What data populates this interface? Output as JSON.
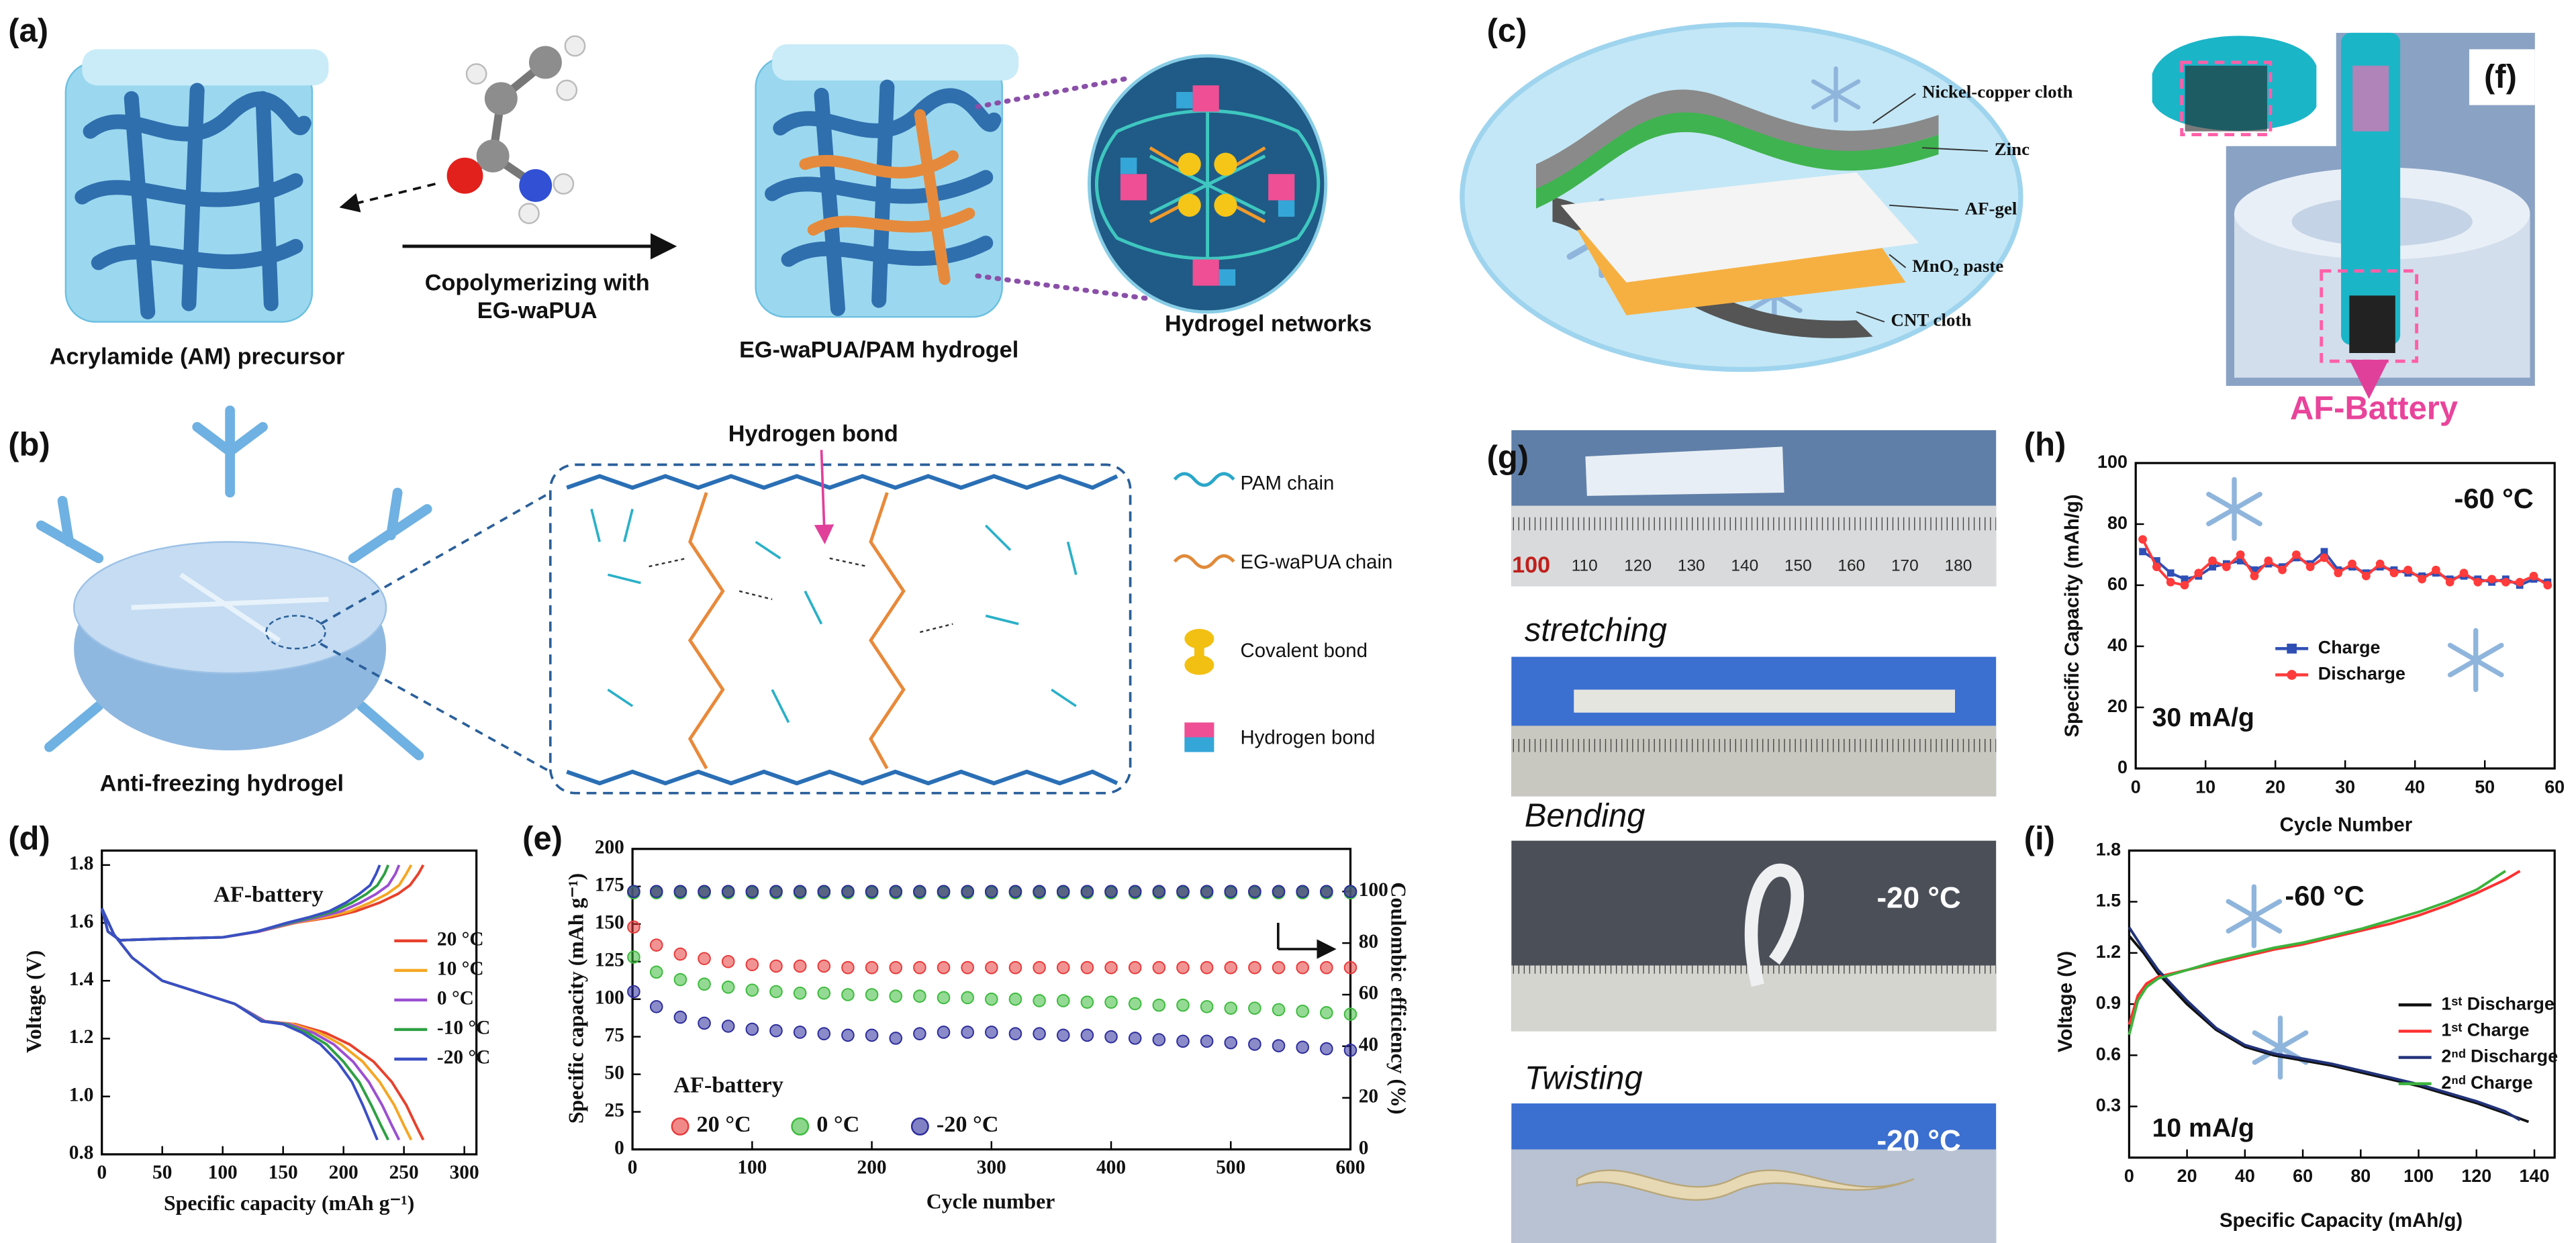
{
  "panels": {
    "a": {
      "label": "(a)",
      "precursor": "Acrylamide (AM) precursor",
      "arrow_text": [
        "Copolymerizing with",
        "EG-waPUA"
      ],
      "hydrogel": "EG-waPUA/PAM hydrogel",
      "networks": "Hydrogel networks"
    },
    "b": {
      "label": "(b)",
      "hydrogel": "Anti-freezing hydrogel",
      "hbond": "Hydrogen bond",
      "legend": [
        "PAM chain",
        "EG-waPUA chain",
        "Covalent bond",
        "Hydrogen bond"
      ]
    },
    "c": {
      "label": "(c)",
      "layers": [
        "Nickel-copper cloth",
        "Zinc",
        "AF-gel",
        "MnO₂ paste",
        "CNT cloth"
      ]
    },
    "f": {
      "label": "(f)",
      "battery": "AF-Battery"
    },
    "g": {
      "label": "(g)",
      "captions": [
        "stretching",
        "Bending",
        "Twisting"
      ],
      "temps": [
        "-20 °C",
        "-20 °C"
      ],
      "ruler": [
        "100",
        "110",
        "120",
        "130",
        "140",
        "150",
        "160",
        "170",
        "180"
      ]
    }
  },
  "chart_data": [
    {
      "type": "line",
      "label": "(d)",
      "xlabel": "Specific capacity (mAh g⁻¹)",
      "ylabel": "Voltage (V)",
      "annotations": [
        "AF-battery"
      ],
      "xlim": [
        0,
        310
      ],
      "ylim": [
        0.8,
        1.85
      ],
      "xticks": [
        0,
        50,
        100,
        150,
        200,
        250,
        300
      ],
      "yticks": [
        0.8,
        {
          "value": 1,
          "label": "1.0"
        },
        1.2,
        1.4,
        1.6,
        1.8
      ],
      "series": [
        {
          "name": "20 °C",
          "color": "#e8412c",
          "charge": {
            "x": [
              0,
              5,
              15,
              50,
              100,
              130,
              160,
              190,
              210,
              230,
              245,
              255,
              262,
              266
            ],
            "values": [
              1.65,
              1.57,
              1.54,
              1.545,
              1.55,
              1.57,
              1.6,
              1.62,
              1.64,
              1.67,
              1.7,
              1.73,
              1.77,
              1.8
            ]
          },
          "discharge": {
            "x": [
              0,
              10,
              25,
              50,
              80,
              110,
              135,
              160,
              185,
              205,
              225,
              240,
              252,
              260,
              266
            ],
            "values": [
              1.65,
              1.56,
              1.48,
              1.4,
              1.36,
              1.32,
              1.26,
              1.25,
              1.22,
              1.18,
              1.12,
              1.05,
              0.97,
              0.9,
              0.85
            ]
          }
        },
        {
          "name": "10 °C",
          "color": "#f5a623",
          "charge": {
            "x": [
              0,
              5,
              15,
              50,
              100,
              130,
              160,
              185,
              205,
              222,
              236,
              246,
              252,
              256
            ],
            "values": [
              1.65,
              1.57,
              1.54,
              1.545,
              1.55,
              1.57,
              1.6,
              1.62,
              1.64,
              1.67,
              1.7,
              1.73,
              1.77,
              1.8
            ]
          },
          "discharge": {
            "x": [
              0,
              10,
              25,
              50,
              80,
              110,
              135,
              158,
              180,
              198,
              216,
              230,
              242,
              250,
              256
            ],
            "values": [
              1.65,
              1.56,
              1.48,
              1.4,
              1.36,
              1.32,
              1.26,
              1.25,
              1.22,
              1.18,
              1.12,
              1.05,
              0.97,
              0.9,
              0.85
            ]
          }
        },
        {
          "name": "0 °C",
          "color": "#9b4fd1",
          "charge": {
            "x": [
              0,
              5,
              15,
              50,
              100,
              130,
              158,
              180,
              198,
              214,
              227,
              237,
              243,
              246
            ],
            "values": [
              1.65,
              1.57,
              1.54,
              1.545,
              1.55,
              1.57,
              1.6,
              1.62,
              1.64,
              1.67,
              1.7,
              1.73,
              1.77,
              1.8
            ]
          },
          "discharge": {
            "x": [
              0,
              10,
              25,
              50,
              80,
              110,
              135,
              155,
              175,
              192,
              208,
              221,
              232,
              240,
              246
            ],
            "values": [
              1.65,
              1.56,
              1.48,
              1.4,
              1.36,
              1.32,
              1.26,
              1.25,
              1.22,
              1.18,
              1.12,
              1.05,
              0.97,
              0.9,
              0.85
            ]
          }
        },
        {
          "name": "-10 °C",
          "color": "#2ea043",
          "charge": {
            "x": [
              0,
              5,
              15,
              50,
              100,
              128,
              155,
              175,
              192,
              207,
              219,
              228,
              234,
              237
            ],
            "values": [
              1.65,
              1.57,
              1.54,
              1.545,
              1.55,
              1.57,
              1.6,
              1.62,
              1.64,
              1.67,
              1.7,
              1.73,
              1.77,
              1.8
            ]
          },
          "discharge": {
            "x": [
              0,
              10,
              25,
              50,
              80,
              110,
              133,
              152,
              170,
              186,
              200,
              213,
              223,
              231,
              237
            ],
            "values": [
              1.65,
              1.56,
              1.48,
              1.4,
              1.36,
              1.32,
              1.26,
              1.25,
              1.22,
              1.18,
              1.12,
              1.05,
              0.97,
              0.9,
              0.85
            ]
          }
        },
        {
          "name": "-20 °C",
          "color": "#3a4fc4",
          "charge": {
            "x": [
              0,
              5,
              15,
              50,
              100,
              128,
              153,
              172,
              188,
              202,
              213,
              222,
              227,
              230
            ],
            "values": [
              1.65,
              1.57,
              1.54,
              1.545,
              1.55,
              1.57,
              1.6,
              1.62,
              1.64,
              1.67,
              1.7,
              1.73,
              1.77,
              1.8
            ]
          },
          "discharge": {
            "x": [
              0,
              10,
              25,
              50,
              80,
              110,
              132,
              150,
              166,
              181,
              195,
              207,
              216,
              223,
              228
            ],
            "values": [
              1.65,
              1.56,
              1.48,
              1.4,
              1.36,
              1.32,
              1.26,
              1.25,
              1.22,
              1.18,
              1.12,
              1.05,
              0.97,
              0.9,
              0.85
            ]
          }
        }
      ]
    },
    {
      "type": "scatter",
      "label": "(e)",
      "xlabel": "Cycle number",
      "ylabel": "Specific capacity (mAh g⁻¹)",
      "y2label": "Coulombic efficiency (%)",
      "annotations": [
        "AF-battery"
      ],
      "xlim": [
        0,
        600
      ],
      "ylim": [
        0,
        200
      ],
      "y2lim": [
        0,
        116.5
      ],
      "xticks": [
        0,
        100,
        200,
        300,
        400,
        500,
        600
      ],
      "yticks": [
        0,
        25,
        50,
        75,
        100,
        125,
        150,
        175,
        200
      ],
      "y2ticks": [
        0,
        20,
        40,
        60,
        80,
        100
      ],
      "x": [
        1,
        20,
        40,
        60,
        80,
        100,
        120,
        140,
        160,
        180,
        200,
        220,
        240,
        260,
        280,
        300,
        320,
        340,
        360,
        380,
        400,
        420,
        440,
        460,
        480,
        500,
        520,
        540,
        560,
        580,
        600
      ],
      "series": [
        {
          "name": "20 °C",
          "color": "#e83a3a",
          "values": [
            148,
            136,
            130,
            127,
            125,
            123,
            122,
            122,
            122,
            121,
            121,
            121,
            121,
            121,
            121,
            121,
            121,
            121,
            121,
            121,
            121,
            121,
            121,
            121,
            121,
            121,
            121,
            121,
            121,
            121,
            121
          ]
        },
        {
          "name": "0 °C",
          "color": "#3dbb3d",
          "values": [
            128,
            118,
            113,
            110,
            108,
            106,
            105,
            104,
            104,
            103,
            103,
            102,
            102,
            101,
            101,
            100,
            100,
            99,
            99,
            98,
            98,
            97,
            96,
            96,
            95,
            94,
            94,
            93,
            92,
            91,
            90
          ]
        },
        {
          "name": "-20 °C",
          "color": "#2c2c9c",
          "values": [
            105,
            95,
            88,
            84,
            82,
            80,
            79,
            78,
            77,
            76,
            76,
            74,
            77,
            78,
            78,
            78,
            77,
            77,
            76,
            76,
            75,
            74,
            73,
            72,
            72,
            71,
            70,
            69,
            68,
            67,
            66
          ]
        },
        {
          "color": "#e83a3a",
          "axis": "y2",
          "values": [
            100,
            100,
            100,
            100,
            100,
            100,
            100,
            100,
            100,
            100,
            100,
            100,
            100,
            100,
            100,
            100,
            100,
            100,
            100,
            100,
            100,
            100,
            100,
            100,
            100,
            100,
            100,
            100,
            100,
            100,
            100
          ]
        },
        {
          "color": "#3dbb3d",
          "axis": "y2",
          "values": [
            99.5,
            99.5,
            99.5,
            99.5,
            99.5,
            99.5,
            99.5,
            99.5,
            99.5,
            99.5,
            99.5,
            99.5,
            99.5,
            99.5,
            99.5,
            99.5,
            99.5,
            99.5,
            99.5,
            99.5,
            99.5,
            99.5,
            99.5,
            99.5,
            99.5,
            99.5,
            99.5,
            99.5,
            99.5,
            99.5,
            99.5
          ]
        },
        {
          "color": "#2c2c9c",
          "axis": "y2",
          "values": [
            100,
            100,
            100,
            100,
            100,
            100,
            100,
            100,
            100,
            100,
            100,
            100,
            100,
            100,
            100,
            100,
            100,
            100,
            100,
            100,
            100,
            100,
            100,
            100,
            100,
            100,
            100,
            100,
            100,
            100,
            100
          ]
        }
      ]
    },
    {
      "type": "line",
      "label": "(h)",
      "xlabel": "Cycle Number",
      "ylabel": "Specific Capacity (mAh/g)",
      "annotations": [
        "-60 °C",
        "30 mA/g"
      ],
      "xlim": [
        0,
        60
      ],
      "ylim": [
        0,
        100
      ],
      "xticks": [
        0,
        10,
        20,
        30,
        40,
        50,
        60
      ],
      "yticks": [
        0,
        20,
        40,
        60,
        80,
        100
      ],
      "x": [
        1,
        3,
        5,
        7,
        9,
        11,
        13,
        15,
        17,
        19,
        21,
        23,
        25,
        27,
        29,
        31,
        33,
        35,
        37,
        39,
        41,
        43,
        45,
        47,
        49,
        51,
        53,
        55,
        57,
        59
      ],
      "series": [
        {
          "name": "Charge",
          "color": "#2f4fb5",
          "marker": "square",
          "values": [
            71,
            68,
            64,
            62,
            63,
            66,
            67,
            68,
            65,
            67,
            66,
            69,
            67,
            71,
            65,
            66,
            64,
            66,
            65,
            64,
            63,
            64,
            62,
            63,
            62,
            61,
            62,
            60,
            62,
            61
          ]
        },
        {
          "name": "Discharge",
          "color": "#ff3b3b",
          "marker": "circle",
          "values": [
            75,
            66,
            61,
            60,
            64,
            68,
            66,
            70,
            63,
            68,
            65,
            70,
            66,
            69,
            64,
            67,
            63,
            67,
            64,
            65,
            62,
            65,
            61,
            64,
            61,
            62,
            61,
            61,
            63,
            60
          ]
        }
      ]
    },
    {
      "type": "line",
      "label": "(i)",
      "xlabel": "Specific Capacity (mAh/g)",
      "ylabel": "Voltage (V)",
      "annotations": [
        "-60 °C",
        "10 mA/g"
      ],
      "xlim": [
        0,
        147
      ],
      "ylim": [
        0,
        1.8
      ],
      "xticks": [
        0,
        20,
        40,
        60,
        80,
        100,
        120,
        140
      ],
      "yticks": [
        0.3,
        0.6,
        0.9,
        1.2,
        1.5,
        1.8
      ],
      "series": [
        {
          "name": "1ˢᵗ Discharge",
          "color": "#111111",
          "x": [
            0,
            5,
            10,
            20,
            30,
            40,
            50,
            60,
            70,
            80,
            90,
            100,
            110,
            120,
            130,
            138
          ],
          "values": [
            1.3,
            1.2,
            1.08,
            0.9,
            0.75,
            0.65,
            0.6,
            0.57,
            0.54,
            0.5,
            0.46,
            0.42,
            0.37,
            0.32,
            0.26,
            0.21
          ]
        },
        {
          "name": "1ˢᵗ Charge",
          "color": "#ff3030",
          "x": [
            0,
            3,
            6,
            10,
            20,
            30,
            40,
            50,
            60,
            70,
            80,
            90,
            100,
            110,
            120,
            130,
            135
          ],
          "values": [
            0.78,
            0.95,
            1.02,
            1.06,
            1.1,
            1.14,
            1.18,
            1.22,
            1.25,
            1.29,
            1.33,
            1.37,
            1.42,
            1.48,
            1.55,
            1.63,
            1.68
          ]
        },
        {
          "name": "2ⁿᵈ Discharge",
          "color": "#22337a",
          "x": [
            0,
            5,
            10,
            20,
            30,
            40,
            50,
            60,
            70,
            80,
            90,
            100,
            110,
            120,
            130,
            135
          ],
          "values": [
            1.35,
            1.22,
            1.1,
            0.92,
            0.76,
            0.66,
            0.61,
            0.58,
            0.55,
            0.51,
            0.47,
            0.43,
            0.38,
            0.33,
            0.27,
            0.22
          ]
        },
        {
          "name": "2ⁿᵈ Charge",
          "color": "#3cb33c",
          "x": [
            0,
            3,
            6,
            10,
            20,
            30,
            40,
            50,
            60,
            70,
            80,
            90,
            100,
            110,
            120,
            130
          ],
          "values": [
            0.72,
            0.92,
            1.0,
            1.05,
            1.1,
            1.15,
            1.19,
            1.23,
            1.26,
            1.3,
            1.34,
            1.39,
            1.44,
            1.5,
            1.57,
            1.68
          ]
        }
      ]
    }
  ]
}
